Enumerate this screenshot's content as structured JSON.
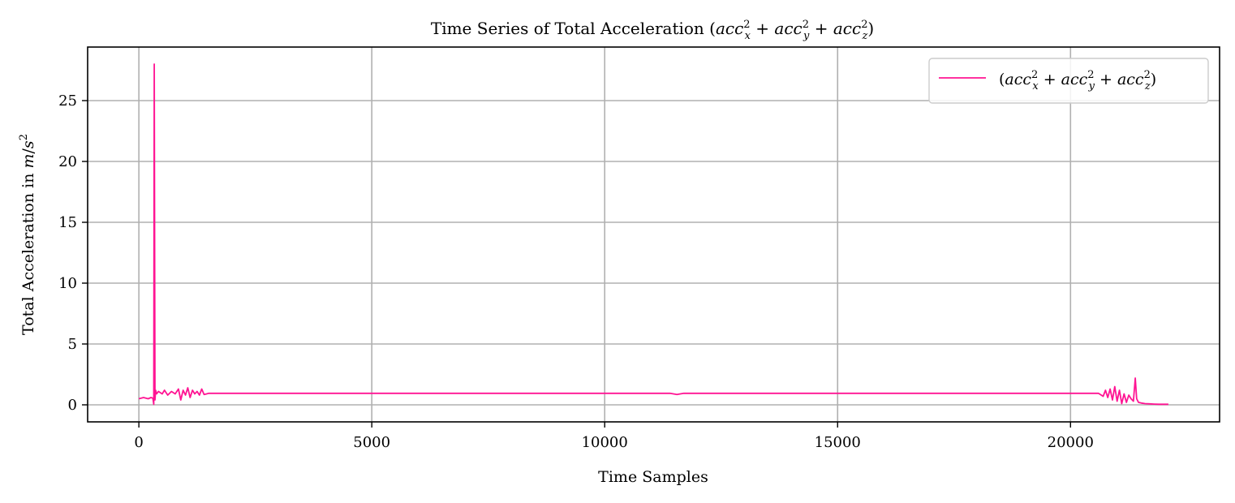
{
  "chart_data": {
    "type": "line",
    "title": "Time Series of Total Acceleration (accₓ² + accᵧ² + accᵩ²)",
    "xlabel": "Time Samples",
    "ylabel": "Total Acceleration in m/s²",
    "xlim": [
      -1100,
      23200
    ],
    "ylim": [
      -1.4,
      29.4
    ],
    "xticks": [
      0,
      5000,
      10000,
      15000,
      20000
    ],
    "yticks": [
      0,
      5,
      10,
      15,
      20,
      25
    ],
    "grid": true,
    "legend_position": "top-right",
    "series": [
      {
        "name": "(accₓ² + accᵧ² + accᵩ²)",
        "color": "#ff1493",
        "x": [
          0,
          100,
          200,
          260,
          300,
          320,
          330,
          345,
          360,
          380,
          420,
          500,
          550,
          620,
          700,
          780,
          850,
          900,
          950,
          1000,
          1050,
          1100,
          1150,
          1200,
          1250,
          1300,
          1350,
          1400,
          1500,
          1600,
          3000,
          5000,
          8000,
          10000,
          11400,
          11550,
          11700,
          13000,
          15000,
          18000,
          20000,
          20600,
          20700,
          20750,
          20800,
          20850,
          20900,
          20950,
          21000,
          21050,
          21100,
          21150,
          21200,
          21250,
          21300,
          21350,
          21390,
          21420,
          21460,
          21520,
          21600,
          21700,
          21800,
          21900,
          22000,
          22100
        ],
        "values": [
          0.5,
          0.6,
          0.5,
          0.6,
          0.55,
          0.05,
          28.0,
          0.4,
          1.2,
          0.9,
          1.1,
          0.9,
          1.2,
          0.8,
          1.1,
          0.9,
          1.3,
          0.4,
          1.2,
          0.8,
          1.4,
          0.6,
          1.2,
          0.9,
          1.1,
          0.8,
          1.3,
          0.85,
          0.95,
          0.95,
          0.95,
          0.95,
          0.95,
          0.95,
          0.95,
          0.85,
          0.95,
          0.95,
          0.95,
          0.95,
          0.95,
          0.95,
          0.7,
          1.2,
          0.6,
          1.3,
          0.4,
          1.5,
          0.3,
          1.2,
          0.1,
          0.9,
          0.2,
          0.8,
          0.5,
          0.3,
          2.2,
          0.5,
          0.2,
          0.15,
          0.1,
          0.08,
          0.06,
          0.05,
          0.05,
          0.05
        ]
      }
    ]
  }
}
